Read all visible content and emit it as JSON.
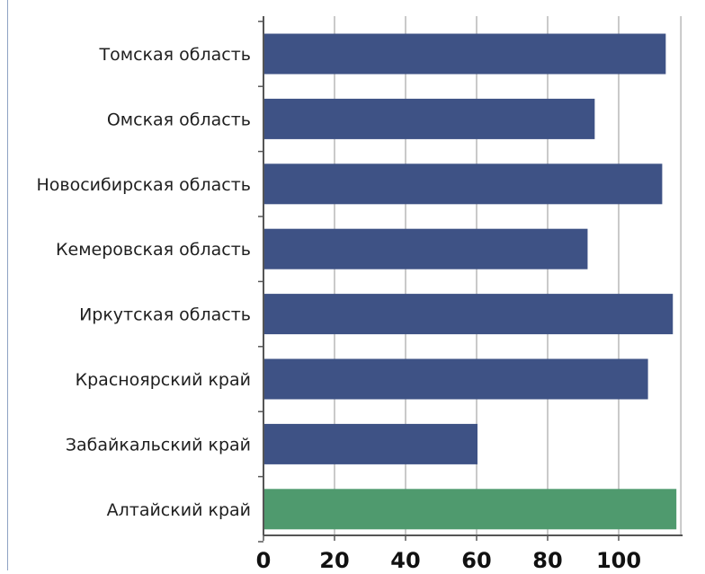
{
  "chart_data": {
    "type": "bar",
    "orientation": "horizontal",
    "title": "",
    "xlabel": "",
    "ylabel": "",
    "categories": [
      "Томская область",
      "Омская область",
      "Новосибирская область",
      "Кемеровская область",
      "Иркутская область",
      "Красноярский край",
      "Забайкальский край",
      "Алтайский край"
    ],
    "values": [
      113,
      93,
      112,
      91,
      115,
      108,
      60,
      116
    ],
    "bar_colors": [
      "#3e5285",
      "#3e5285",
      "#3e5285",
      "#3e5285",
      "#3e5285",
      "#3e5285",
      "#3e5285",
      "#4f9a6e"
    ],
    "xlim": [
      0,
      117
    ],
    "xticks": [
      0,
      20,
      40,
      60,
      80,
      100
    ],
    "xtick_labels": [
      "0",
      "20",
      "40",
      "60",
      "80",
      "100"
    ],
    "grid": true,
    "grid_color": "#b9b9b9",
    "axis_color": "#555555",
    "legend": "none"
  }
}
